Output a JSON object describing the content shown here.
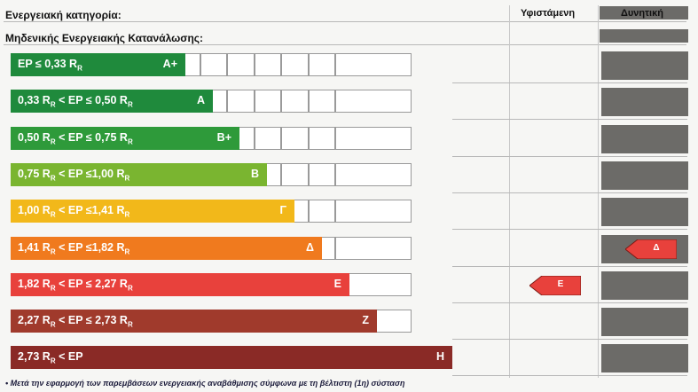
{
  "header": {
    "category_label": "Ενεργειακή κατηγορία:",
    "zero_label": "Μηδενικής Ενεργειακής Κατανάλωσης:",
    "existing_col": "Υφιστάμενη",
    "potential_col": "Δυνητική"
  },
  "rows": [
    {
      "range": "EP ≤ 0,33 R",
      "sub_tail": "R",
      "class": "A+",
      "color": "#1f8a3c"
    },
    {
      "range": "0,33 R",
      "sub1": "R",
      "mid": " < EP ≤ 0,50 R",
      "sub2": "R",
      "class": "A",
      "color": "#1f8a3c"
    },
    {
      "range": "0,50 R",
      "sub1": "R",
      "mid": " < EP ≤ 0,75 R",
      "sub2": "R",
      "class": "B+",
      "color": "#2e9a3a"
    },
    {
      "range": "0,75 R",
      "sub1": "R",
      "mid": " < EP ≤1,00 R",
      "sub2": "R",
      "class": "B",
      "color": "#7ab530"
    },
    {
      "range": "1,00 R",
      "sub1": "R",
      "mid": " < EP ≤1,41 R",
      "sub2": "R",
      "class": "Γ",
      "color": "#f2b81a"
    },
    {
      "range": "1,41 R",
      "sub1": "R",
      "mid": " < EP ≤1,82 R",
      "sub2": "R",
      "class": "Δ",
      "color": "#f07a1e"
    },
    {
      "range": "1,82 R",
      "sub1": "R",
      "mid": " < EP ≤ 2,27 R",
      "sub2": "R",
      "class": "E",
      "color": "#e8413c"
    },
    {
      "range": "2,27 R",
      "sub1": "R",
      "mid": " <  EP ≤ 2,73 R",
      "sub2": "R",
      "class": "Z",
      "color": "#a03a2c"
    },
    {
      "range": "2,73 R",
      "sub1": "R",
      "mid": " < EP",
      "sub2": "",
      "class": "H",
      "color": "#8a2a26"
    }
  ],
  "existing_rating": "E",
  "potential_rating": "Δ",
  "footnote": "• Μετά την εφαρμογή των παρεμβάσεων ενεργειακής αναβάθμισης σύμφωνα με τη βέλτιστη (1η) σύσταση"
}
